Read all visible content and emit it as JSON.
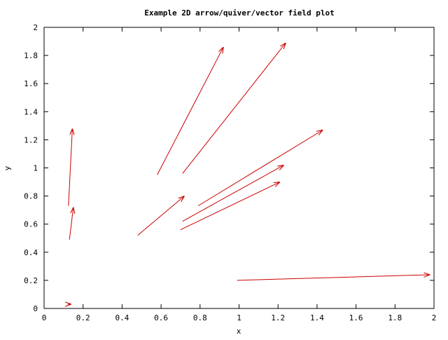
{
  "chart_data": {
    "type": "quiver",
    "title": "Example 2D arrow/quiver/vector field plot",
    "xlabel": "x",
    "ylabel": "y",
    "xlim": [
      0,
      2
    ],
    "ylim": [
      0,
      2
    ],
    "xticks": [
      "0",
      "0.2",
      "0.4",
      "0.6",
      "0.8",
      "1",
      "1.2",
      "1.4",
      "1.6",
      "1.8",
      "2"
    ],
    "yticks": [
      "0",
      "0.2",
      "0.4",
      "0.6",
      "0.8",
      "1",
      "1.2",
      "1.4",
      "1.6",
      "1.8",
      "2"
    ],
    "grid": false,
    "arrow_color": "#cc0000",
    "vectors": [
      {
        "x": 0.12,
        "y": 0.03,
        "dx": 0.02,
        "dy": 0.0
      },
      {
        "x": 0.13,
        "y": 0.49,
        "dx": 0.02,
        "dy": 0.23
      },
      {
        "x": 0.125,
        "y": 0.73,
        "dx": 0.02,
        "dy": 0.55
      },
      {
        "x": 0.48,
        "y": 0.52,
        "dx": 0.24,
        "dy": 0.28
      },
      {
        "x": 0.58,
        "y": 0.95,
        "dx": 0.34,
        "dy": 0.91
      },
      {
        "x": 0.71,
        "y": 0.96,
        "dx": 0.53,
        "dy": 0.93
      },
      {
        "x": 0.7,
        "y": 0.56,
        "dx": 0.51,
        "dy": 0.34
      },
      {
        "x": 0.71,
        "y": 0.62,
        "dx": 0.52,
        "dy": 0.4
      },
      {
        "x": 0.79,
        "y": 0.73,
        "dx": 0.64,
        "dy": 0.54
      },
      {
        "x": 0.99,
        "y": 0.2,
        "dx": 0.99,
        "dy": 0.04
      }
    ]
  }
}
